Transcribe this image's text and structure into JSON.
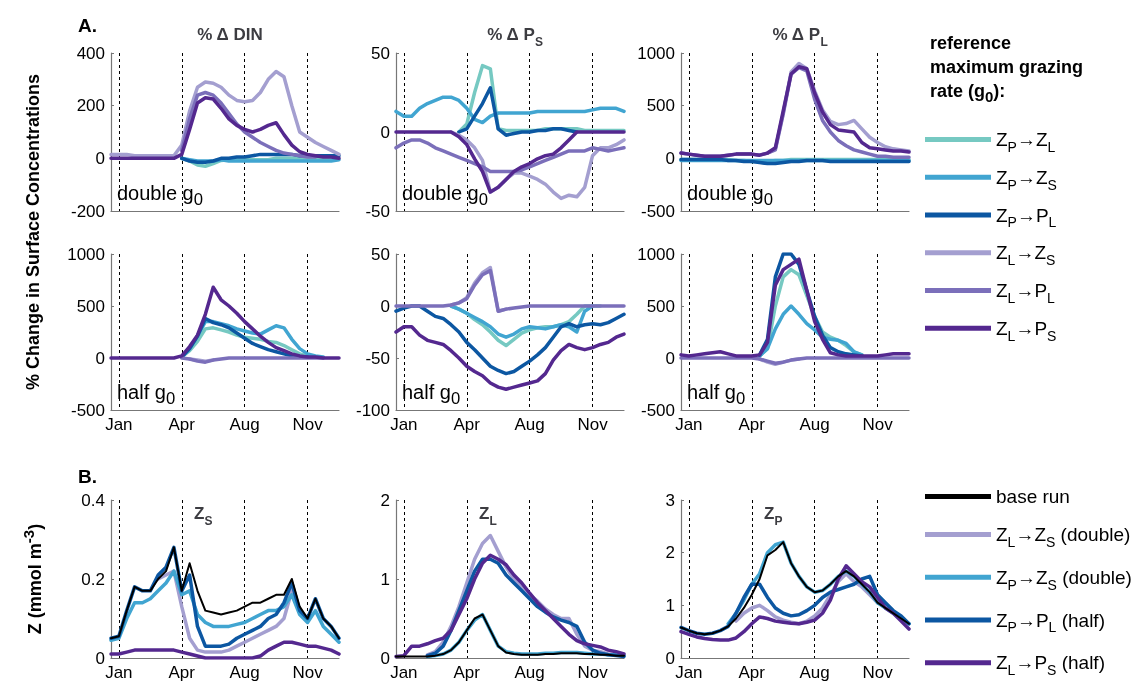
{
  "chart_data": [
    {
      "type": "line",
      "title": "% Δ DIN",
      "ylabel": "% Change in Surface Concentrations",
      "annotations": [
        "A.",
        "double g$_{0}$"
      ],
      "categories": [
        null,
        null,
        null,
        null,
        null,
        null,
        null,
        null,
        null,
        null,
        null,
        null,
        null,
        null,
        null,
        null,
        null,
        null,
        null,
        null,
        null,
        null,
        null,
        null,
        null,
        null,
        null,
        null,
        null,
        null
      ],
      "ylim": [
        -200,
        400
      ],
      "yticks": [
        -200,
        0,
        200,
        400
      ],
      "grid": "x",
      "tick_labels": "y",
      "series": [
        {
          "color": "#76c9c2",
          "values": [
            null,
            null,
            null,
            null,
            null,
            null,
            null,
            null,
            null,
            0,
            -10,
            -25,
            -30,
            -20,
            -8,
            -5,
            -5,
            -5,
            -5,
            -5,
            -5,
            0,
            0,
            0,
            0,
            0,
            0,
            0,
            0,
            null
          ]
        },
        {
          "color": "#41a5d1",
          "values": [
            null,
            null,
            null,
            null,
            null,
            null,
            null,
            null,
            null,
            0,
            -5,
            -10,
            -10,
            -10,
            -5,
            -10,
            -10,
            -10,
            -10,
            -10,
            -10,
            -10,
            -10,
            -10,
            -10,
            -10,
            -10,
            -10,
            -10,
            -5
          ]
        },
        {
          "color": "#0c57a2",
          "values": [
            null,
            null,
            null,
            null,
            null,
            null,
            null,
            null,
            null,
            0,
            -10,
            -15,
            -15,
            -10,
            0,
            0,
            5,
            5,
            10,
            15,
            15,
            15,
            15,
            15,
            10,
            10,
            10,
            10,
            10,
            10
          ]
        },
        {
          "color": "#a49fd0",
          "values": [
            15,
            15,
            15,
            10,
            10,
            10,
            10,
            10,
            10,
            50,
            180,
            270,
            290,
            285,
            270,
            240,
            220,
            215,
            220,
            250,
            300,
            330,
            310,
            200,
            100,
            80,
            60,
            45,
            30,
            15
          ]
        },
        {
          "color": "#7b6fba",
          "values": [
            null,
            null,
            null,
            null,
            null,
            null,
            null,
            null,
            null,
            30,
            150,
            240,
            250,
            240,
            210,
            170,
            130,
            100,
            80,
            60,
            45,
            30,
            20,
            15,
            10,
            5,
            5,
            null,
            null,
            null
          ]
        },
        {
          "color": "#54288f",
          "values": [
            0,
            0,
            0,
            0,
            0,
            0,
            0,
            0,
            0,
            15,
            110,
            210,
            230,
            225,
            190,
            150,
            125,
            110,
            100,
            110,
            125,
            135,
            90,
            50,
            25,
            15,
            10,
            5,
            5,
            0
          ]
        }
      ]
    },
    {
      "type": "line",
      "title": "% Δ P$_{S}$",
      "annotations": [
        "double g$_{0}$"
      ],
      "categories": [
        null,
        null,
        null,
        null,
        null,
        null,
        null,
        null,
        null,
        null,
        null,
        null,
        null,
        null,
        null,
        null,
        null,
        null,
        null,
        null,
        null,
        null,
        null,
        null,
        null,
        null,
        null,
        null,
        null,
        null
      ],
      "ylim": [
        -50,
        50
      ],
      "yticks": [
        -50,
        0,
        50
      ],
      "grid": "x",
      "tick_labels": "y",
      "series": [
        {
          "color": "#76c9c2",
          "values": [
            null,
            null,
            null,
            null,
            null,
            null,
            null,
            null,
            0,
            5,
            25,
            42,
            40,
            2,
            1,
            1,
            1,
            1,
            1,
            2,
            2,
            2,
            2,
            2,
            1,
            1,
            1,
            1,
            1,
            1
          ]
        },
        {
          "color": "#41a5d1",
          "values": [
            13,
            10,
            10,
            15,
            18,
            20,
            22,
            22,
            20,
            15,
            8,
            6,
            10,
            12,
            12,
            12,
            12,
            12,
            13,
            13,
            13,
            13,
            13,
            13,
            13,
            14,
            15,
            15,
            15,
            13
          ]
        },
        {
          "color": "#0c57a2",
          "values": [
            null,
            null,
            null,
            null,
            null,
            null,
            null,
            null,
            0,
            2,
            10,
            18,
            28,
            2,
            -2,
            -1,
            0,
            0,
            1,
            1,
            2,
            2,
            1,
            0,
            null,
            null,
            null,
            null,
            null,
            null
          ]
        },
        {
          "color": "#a49fd0",
          "values": [
            null,
            null,
            null,
            null,
            null,
            null,
            null,
            0,
            -2,
            -5,
            -10,
            -18,
            -38,
            -35,
            -30,
            -26,
            -26,
            -28,
            -30,
            -33,
            -38,
            -42,
            -40,
            -41,
            -35,
            -15,
            -10,
            -10,
            -8,
            -5
          ]
        },
        {
          "color": "#7b6fba",
          "values": [
            -10,
            -7,
            -5,
            -5,
            -7,
            -10,
            -12,
            -14,
            -16,
            -18,
            -20,
            -22,
            -25,
            -25,
            -25,
            -25,
            -24,
            -22,
            -20,
            -18,
            -16,
            -14,
            -12,
            -12,
            -12,
            -10,
            -11,
            -12,
            -11,
            -10
          ]
        },
        {
          "color": "#54288f",
          "values": [
            0,
            0,
            0,
            0,
            0,
            0,
            0,
            0,
            -3,
            -8,
            -17,
            -25,
            -38,
            -35,
            -30,
            -25,
            -22,
            -20,
            -17,
            -15,
            -14,
            -10,
            -5,
            0,
            0,
            0,
            0,
            0,
            0,
            0
          ]
        }
      ]
    },
    {
      "type": "line",
      "title": "% Δ P$_{L}$",
      "legend": "right",
      "legend_title": "reference maximum grazing rate (g$_{0}$):",
      "annotations": [
        "double g$_{0}$"
      ],
      "categories": [
        null,
        null,
        null,
        null,
        null,
        null,
        null,
        null,
        null,
        null,
        null,
        null,
        null,
        null,
        null,
        null,
        null,
        null,
        null,
        null,
        null,
        null,
        null,
        null,
        null,
        null,
        null,
        null,
        null,
        null
      ],
      "ylim": [
        -500,
        1000
      ],
      "yticks": [
        -500,
        0,
        500,
        1000
      ],
      "grid": "x",
      "tick_labels": "y",
      "series": [
        {
          "name": "Z$_{P}$→Z$_{L}$",
          "color": "#76c9c2",
          "values": [
            -10,
            -10,
            -10,
            -10,
            -10,
            -10,
            -10,
            -20,
            -20,
            -30,
            -30,
            -30,
            -20,
            -20,
            -10,
            -10,
            -10,
            -10,
            -10,
            -10,
            -10,
            -10,
            -10,
            -10,
            -10,
            -10,
            -10,
            -10,
            -10,
            -10
          ]
        },
        {
          "name": "Z$_{P}$→Z$_{S}$",
          "color": "#41a5d1",
          "values": [
            -20,
            -20,
            -20,
            -20,
            -20,
            -20,
            -20,
            -20,
            -20,
            -20,
            -20,
            -20,
            -20,
            -20,
            -20,
            -20,
            -20,
            -20,
            -20,
            -20,
            -20,
            -20,
            -20,
            -20,
            -20,
            -20,
            -20,
            -20,
            -20,
            -20
          ]
        },
        {
          "name": "Z$_{P}$→P$_{L}$",
          "color": "#0c57a2",
          "values": [
            -10,
            -10,
            -10,
            -10,
            -10,
            -10,
            -20,
            -20,
            -30,
            -30,
            -40,
            -50,
            -50,
            -40,
            -30,
            -30,
            -20,
            -20,
            -20,
            -30,
            -30,
            -30,
            -30,
            -30,
            -30,
            -30,
            -30,
            -30,
            -30,
            -30
          ]
        },
        {
          "name": "Z$_{L}$→Z$_{S}$",
          "color": "#a49fd0",
          "values": [
            null,
            null,
            null,
            null,
            null,
            null,
            null,
            null,
            null,
            null,
            null,
            50,
            90,
            430,
            820,
            900,
            850,
            640,
            460,
            350,
            320,
            330,
            360,
            280,
            200,
            150,
            110,
            90,
            80,
            70
          ]
        },
        {
          "name": "Z$_{L}$→P$_{L}$",
          "color": "#7b6fba",
          "values": [
            50,
            40,
            30,
            20,
            20,
            20,
            30,
            40,
            40,
            40,
            30,
            50,
            80,
            420,
            800,
            860,
            830,
            560,
            360,
            250,
            170,
            120,
            80,
            60,
            40,
            20,
            20,
            10,
            10,
            10
          ]
        },
        {
          "name": "Z$_{L}$→P$_{S}$",
          "color": "#54288f",
          "values": [
            50,
            40,
            30,
            20,
            20,
            20,
            30,
            40,
            40,
            40,
            30,
            50,
            100,
            450,
            800,
            870,
            850,
            620,
            440,
            320,
            270,
            260,
            250,
            150,
            100,
            90,
            80,
            70,
            70,
            60
          ]
        }
      ]
    },
    {
      "type": "line",
      "annotations": [
        "half g$_{0}$"
      ],
      "categories": [
        null,
        "Jan",
        null,
        null,
        null,
        null,
        null,
        null,
        null,
        "Apr",
        null,
        null,
        null,
        null,
        null,
        null,
        null,
        "Aug",
        null,
        null,
        null,
        null,
        null,
        null,
        null,
        "Nov",
        null,
        null,
        null,
        null
      ],
      "ylim": [
        -500,
        1000
      ],
      "yticks": [
        -500,
        0,
        500,
        1000
      ],
      "grid": "x",
      "series": [
        {
          "color": "#76c9c2",
          "values": [
            null,
            null,
            null,
            null,
            null,
            null,
            null,
            null,
            null,
            10,
            70,
            160,
            280,
            290,
            270,
            250,
            220,
            200,
            190,
            180,
            160,
            150,
            120,
            80,
            40,
            20,
            10,
            null,
            null,
            null
          ]
        },
        {
          "color": "#41a5d1",
          "values": [
            null,
            null,
            null,
            null,
            null,
            null,
            null,
            null,
            null,
            10,
            90,
            210,
            350,
            350,
            330,
            310,
            280,
            260,
            240,
            230,
            270,
            310,
            290,
            180,
            90,
            40,
            20,
            10,
            null,
            null
          ]
        },
        {
          "color": "#0c57a2",
          "values": [
            null,
            null,
            null,
            null,
            null,
            null,
            null,
            null,
            null,
            10,
            90,
            210,
            380,
            340,
            320,
            290,
            240,
            190,
            140,
            110,
            80,
            60,
            40,
            20,
            10,
            10,
            null,
            null,
            null,
            null
          ]
        },
        {
          "color": "#a49fd0",
          "values": [
            null,
            null,
            null,
            null,
            null,
            null,
            null,
            null,
            null,
            null,
            -10,
            -20,
            -30,
            -20,
            null,
            null,
            null,
            null,
            null,
            null,
            null,
            null,
            null,
            null,
            null,
            null,
            null,
            null,
            null,
            null
          ]
        },
        {
          "color": "#7b6fba",
          "values": [
            null,
            null,
            null,
            null,
            null,
            null,
            null,
            null,
            null,
            0,
            -10,
            -30,
            -40,
            -20,
            -10,
            0,
            0,
            0,
            0,
            0,
            0,
            0,
            0,
            0,
            0,
            0,
            0,
            0,
            null,
            null
          ]
        },
        {
          "color": "#54288f",
          "values": [
            0,
            0,
            0,
            0,
            0,
            0,
            0,
            0,
            0,
            20,
            110,
            220,
            420,
            680,
            560,
            500,
            430,
            350,
            280,
            210,
            150,
            100,
            70,
            40,
            20,
            10,
            10,
            0,
            0,
            0
          ]
        }
      ]
    },
    {
      "type": "line",
      "annotations": [
        "half g$_{0}$"
      ],
      "categories": [
        null,
        "Jan",
        null,
        null,
        null,
        null,
        null,
        null,
        null,
        "Apr",
        null,
        null,
        null,
        null,
        null,
        null,
        null,
        "Aug",
        null,
        null,
        null,
        null,
        null,
        null,
        null,
        "Nov",
        null,
        null,
        null,
        null
      ],
      "ylim": [
        -100,
        50
      ],
      "yticks": [
        -100,
        -50,
        0,
        50
      ],
      "grid": "x",
      "series": [
        {
          "color": "#76c9c2",
          "values": [
            null,
            null,
            null,
            null,
            null,
            null,
            null,
            0,
            -3,
            -7,
            -13,
            -18,
            -25,
            -33,
            -38,
            -32,
            -26,
            -23,
            -21,
            -20,
            -20,
            -18,
            -15,
            -8,
            0,
            0,
            0,
            null,
            null,
            null
          ]
        },
        {
          "color": "#41a5d1",
          "values": [
            null,
            null,
            null,
            null,
            null,
            null,
            null,
            0,
            -3,
            -7,
            -11,
            -15,
            -20,
            -27,
            -30,
            -27,
            -22,
            -20,
            -21,
            -22,
            -20,
            -18,
            -20,
            -25,
            -5,
            0,
            null,
            null,
            null,
            null
          ]
        },
        {
          "color": "#0c57a2",
          "values": [
            -5,
            -2,
            0,
            0,
            -5,
            -10,
            -12,
            -18,
            -25,
            -35,
            -42,
            -50,
            -58,
            -62,
            -65,
            -63,
            -58,
            -53,
            -47,
            -40,
            -30,
            -20,
            -17,
            -20,
            -18,
            -17,
            -18,
            -16,
            -12,
            -8
          ]
        },
        {
          "color": "#a49fd0",
          "values": [
            null,
            null,
            null,
            null,
            null,
            null,
            null,
            1,
            3,
            8,
            22,
            32,
            37,
            -5,
            -3,
            null,
            null,
            null,
            null,
            null,
            null,
            null,
            null,
            null,
            null,
            null,
            null,
            null,
            null,
            null
          ]
        },
        {
          "color": "#7b6fba",
          "values": [
            0,
            0,
            0,
            0,
            0,
            0,
            0,
            1,
            3,
            7,
            20,
            30,
            34,
            -5,
            -3,
            -2,
            -1,
            0,
            0,
            0,
            0,
            0,
            0,
            0,
            0,
            0,
            0,
            0,
            0,
            0
          ]
        },
        {
          "color": "#54288f",
          "values": [
            -25,
            -20,
            -20,
            -28,
            -33,
            -35,
            -37,
            -43,
            -50,
            -58,
            -63,
            -67,
            -74,
            -78,
            -80,
            -78,
            -76,
            -74,
            -72,
            -65,
            -52,
            -43,
            -37,
            -40,
            -42,
            -40,
            -37,
            -35,
            -30,
            -27
          ]
        }
      ]
    },
    {
      "type": "line",
      "annotations": [
        "half g$_{0}$"
      ],
      "categories": [
        null,
        "Jan",
        null,
        null,
        null,
        null,
        null,
        null,
        null,
        "Apr",
        null,
        null,
        null,
        null,
        null,
        null,
        null,
        "Aug",
        null,
        null,
        null,
        null,
        null,
        null,
        null,
        "Nov",
        null,
        null,
        null,
        null
      ],
      "ylim": [
        -500,
        1000
      ],
      "yticks": [
        -500,
        0,
        500,
        1000
      ],
      "grid": "x",
      "series": [
        {
          "color": "#76c9c2",
          "values": [
            null,
            null,
            null,
            null,
            null,
            null,
            null,
            null,
            null,
            null,
            20,
            90,
            500,
            780,
            850,
            800,
            600,
            400,
            250,
            200,
            170,
            120,
            60,
            30,
            null,
            null,
            null,
            null,
            null,
            null
          ]
        },
        {
          "color": "#41a5d1",
          "values": [
            null,
            null,
            null,
            null,
            null,
            null,
            null,
            null,
            null,
            null,
            20,
            90,
            280,
            420,
            500,
            420,
            330,
            270,
            200,
            180,
            170,
            140,
            60,
            30,
            null,
            null,
            null,
            null,
            null,
            null
          ]
        },
        {
          "color": "#0c57a2",
          "values": [
            null,
            null,
            null,
            null,
            null,
            null,
            null,
            null,
            null,
            null,
            30,
            180,
            780,
            1000,
            1000,
            900,
            650,
            400,
            220,
            100,
            60,
            40,
            30,
            20,
            null,
            null,
            null,
            null,
            null,
            null
          ]
        },
        {
          "color": "#a49fd0",
          "values": [
            null,
            null,
            null,
            null,
            null,
            null,
            null,
            null,
            null,
            null,
            -10,
            -40,
            -60,
            -40,
            -20,
            -10,
            null,
            null,
            null,
            null,
            null,
            null,
            null,
            null,
            null,
            null,
            null,
            null,
            null,
            null
          ]
        },
        {
          "color": "#7b6fba",
          "values": [
            0,
            0,
            0,
            0,
            0,
            0,
            0,
            0,
            0,
            0,
            -10,
            -30,
            -50,
            -40,
            -20,
            -10,
            0,
            0,
            0,
            0,
            0,
            0,
            0,
            0,
            0,
            0,
            0,
            0,
            0,
            0
          ]
        },
        {
          "color": "#54288f",
          "values": [
            30,
            20,
            30,
            40,
            50,
            60,
            40,
            20,
            20,
            20,
            30,
            150,
            700,
            850,
            900,
            950,
            650,
            350,
            180,
            50,
            30,
            20,
            20,
            20,
            20,
            20,
            30,
            40,
            40,
            40
          ]
        }
      ]
    },
    {
      "type": "line",
      "title": "Z$_{S}$",
      "ylabel": "Z (mmol m$^{-3}$)",
      "annotations": [
        "B."
      ],
      "categories": [
        null,
        "Jan",
        null,
        null,
        null,
        null,
        null,
        null,
        null,
        "Apr",
        null,
        null,
        null,
        null,
        null,
        null,
        null,
        "Aug",
        null,
        null,
        null,
        null,
        null,
        null,
        null,
        "Nov",
        null,
        null,
        null,
        null
      ],
      "ylim": [
        0,
        0.4
      ],
      "yticks": [
        0,
        0.2,
        0.4
      ],
      "grid": "x",
      "series": [
        {
          "color": "#000000",
          "values": [
            0.05,
            0.055,
            0.12,
            0.18,
            0.17,
            0.17,
            0.2,
            0.22,
            0.28,
            0.17,
            0.24,
            0.17,
            0.12,
            0.115,
            0.11,
            0.115,
            0.12,
            0.13,
            0.14,
            0.14,
            0.15,
            0.16,
            0.16,
            0.2,
            0.13,
            0.1,
            0.15,
            0.1,
            0.08,
            0.05
          ]
        },
        {
          "color": "#a49fd0",
          "values": [
            null,
            null,
            null,
            null,
            null,
            null,
            0.2,
            0.21,
            0.22,
            0.13,
            0.05,
            0.02,
            0.015,
            0.015,
            0.015,
            0.02,
            0.03,
            0.04,
            0.05,
            0.06,
            0.07,
            0.08,
            0.1,
            0.17,
            0.12,
            0.1,
            null,
            null,
            null,
            null
          ]
        },
        {
          "color": "#41a5d1",
          "values": [
            0.045,
            0.05,
            0.1,
            0.14,
            0.14,
            0.15,
            0.17,
            0.19,
            0.22,
            0.16,
            0.17,
            0.11,
            0.09,
            0.08,
            0.08,
            0.08,
            0.085,
            0.09,
            0.1,
            0.11,
            0.12,
            0.12,
            0.13,
            0.16,
            0.11,
            0.09,
            0.12,
            0.08,
            0.06,
            0.04
          ]
        },
        {
          "color": "#0c57a2",
          "values": [
            0.05,
            0.055,
            0.12,
            0.18,
            0.17,
            0.17,
            0.21,
            0.23,
            0.28,
            0.17,
            0.21,
            0.08,
            0.03,
            0.03,
            0.03,
            0.035,
            0.05,
            0.06,
            0.07,
            0.08,
            0.1,
            0.11,
            0.14,
            0.19,
            0.12,
            0.1,
            0.15,
            0.1,
            0.08,
            0.05
          ]
        },
        {
          "color": "#54288f",
          "values": [
            0.01,
            0.01,
            0.015,
            0.02,
            0.02,
            0.02,
            0.02,
            0.02,
            0.02,
            0.015,
            0.01,
            0.005,
            0,
            0,
            0,
            0,
            0,
            0,
            0,
            0.005,
            0.02,
            0.03,
            0.04,
            0.04,
            0.035,
            0.03,
            0.03,
            0.025,
            0.02,
            0.01
          ]
        }
      ]
    },
    {
      "type": "line",
      "title": "Z$_{L}$",
      "categories": [
        null,
        "Jan",
        null,
        null,
        null,
        null,
        null,
        null,
        null,
        "Apr",
        null,
        null,
        null,
        null,
        null,
        null,
        null,
        "Aug",
        null,
        null,
        null,
        null,
        null,
        null,
        null,
        "Nov",
        null,
        null,
        null,
        null
      ],
      "ylim": [
        0,
        2
      ],
      "yticks": [
        0,
        1,
        2
      ],
      "grid": "x",
      "series": [
        {
          "color": "#000000",
          "values": [
            0.02,
            0.02,
            0.02,
            0.02,
            0.02,
            0.03,
            0.05,
            0.1,
            0.2,
            0.35,
            0.5,
            0.55,
            0.35,
            0.15,
            0.07,
            0.05,
            0.04,
            0.04,
            0.04,
            0.05,
            0.05,
            0.06,
            0.06,
            0.06,
            0.05,
            0.05,
            0.04,
            0.04,
            0.03,
            0.03
          ]
        },
        {
          "color": "#a49fd0",
          "values": [
            null,
            null,
            null,
            null,
            0.04,
            0.08,
            0.2,
            0.4,
            0.65,
            0.95,
            1.25,
            1.45,
            1.55,
            1.35,
            1.15,
            1,
            0.9,
            0.8,
            0.72,
            0.62,
            0.55,
            0.5,
            0.5,
            0.3,
            0.15,
            0.1,
            0.08,
            0.05,
            0.04,
            0.03
          ]
        },
        {
          "color": "#41a5d1",
          "values": [
            null,
            null,
            null,
            null,
            0.02,
            0.03,
            0.05,
            0.1,
            0.2,
            0.35,
            0.48,
            0.55,
            0.35,
            0.15,
            0.08,
            0.06,
            0.05,
            0.05,
            0.05,
            0.06,
            0.06,
            0.07,
            0.07,
            0.07,
            0.06,
            0.05,
            0.05,
            0.04,
            0.04,
            0.03
          ]
        },
        {
          "color": "#0c57a2",
          "values": [
            null,
            null,
            null,
            null,
            0.03,
            0.06,
            0.15,
            0.35,
            0.6,
            0.85,
            1.1,
            1.25,
            1.25,
            1.2,
            1.05,
            0.95,
            0.85,
            0.75,
            0.65,
            0.58,
            0.52,
            0.48,
            0.45,
            0.4,
            0.2,
            0.1,
            0.06,
            0.04,
            0.03,
            0.02
          ]
        },
        {
          "color": "#54288f",
          "values": [
            0.02,
            0.03,
            0.15,
            0.15,
            0.18,
            0.22,
            0.25,
            0.35,
            0.55,
            0.75,
            1,
            1.2,
            1.3,
            1.25,
            1.18,
            1.05,
            0.95,
            0.82,
            0.7,
            0.6,
            0.5,
            0.4,
            0.3,
            0.22,
            0.18,
            0.16,
            0.14,
            0.1,
            0.08,
            0.05
          ]
        }
      ]
    },
    {
      "type": "line",
      "title": "Z$_{P}$",
      "legend": "right",
      "categories": [
        null,
        "Jan",
        null,
        null,
        null,
        null,
        null,
        null,
        null,
        "Apr",
        null,
        null,
        null,
        null,
        null,
        null,
        null,
        "Aug",
        null,
        null,
        null,
        null,
        null,
        null,
        null,
        "Nov",
        null,
        null,
        null,
        null
      ],
      "ylim": [
        0,
        3
      ],
      "yticks": [
        0,
        1,
        2,
        3
      ],
      "grid": "x",
      "series": [
        {
          "name": "base run",
          "color": "#000000",
          "values": [
            0.58,
            0.52,
            0.47,
            0.45,
            0.47,
            0.52,
            0.6,
            0.75,
            0.95,
            1.2,
            1.5,
            1.95,
            2.05,
            2.2,
            1.8,
            1.55,
            1.35,
            1.25,
            1.28,
            1.4,
            1.55,
            1.65,
            1.55,
            1.4,
            1.25,
            1.05,
            0.95,
            0.85,
            0.75,
            0.65
          ]
        },
        {
          "name": "Z$_{L}$→Z$_{S}$ (double)",
          "color": "#a49fd0",
          "values": [
            null,
            null,
            null,
            null,
            null,
            null,
            null,
            0.7,
            0.85,
            0.95,
            1,
            0.9,
            0.78,
            0.72,
            0.68,
            0.65,
            0.7,
            0.8,
            0.95,
            1.2,
            1.45,
            1.6,
            1.45,
            1.35,
            1.2,
            1.05,
            null,
            null,
            null,
            null
          ]
        },
        {
          "name": "Z$_{P}$→Z$_{S}$ (double)",
          "color": "#41a5d1",
          "values": [
            null,
            null,
            null,
            null,
            null,
            null,
            0.65,
            0.85,
            1.1,
            1.4,
            1.6,
            2,
            2.15,
            2.2,
            1.8,
            1.55,
            1.35,
            1.25,
            1.28,
            1.4,
            1.55,
            1.65,
            1.55,
            1.4,
            1.25,
            1.05,
            0.95,
            0.85,
            0.75,
            0.65
          ]
        },
        {
          "name": "Z$_{P}$→P$_{L}$ (half)",
          "color": "#0c57a2",
          "values": [
            0.58,
            0.52,
            0.47,
            0.45,
            0.47,
            0.52,
            0.6,
            0.85,
            1.15,
            1.4,
            1.4,
            1.15,
            0.95,
            0.85,
            0.8,
            0.82,
            0.9,
            1,
            1.15,
            1.25,
            1.3,
            1.35,
            1.4,
            1.5,
            1.55,
            1.2,
            1.05,
            0.9,
            0.8,
            0.65
          ]
        },
        {
          "name": "Z$_{L}$→P$_{S}$ (half)",
          "color": "#54288f",
          "values": [
            0.5,
            0.45,
            0.4,
            0.37,
            0.35,
            0.34,
            0.34,
            0.38,
            0.5,
            0.65,
            0.78,
            0.75,
            0.7,
            0.68,
            0.66,
            0.65,
            0.68,
            0.72,
            0.85,
            1.1,
            1.5,
            1.75,
            1.6,
            1.45,
            1.35,
            1.15,
            0.95,
            0.85,
            0.7,
            0.55
          ]
        }
      ]
    }
  ]
}
